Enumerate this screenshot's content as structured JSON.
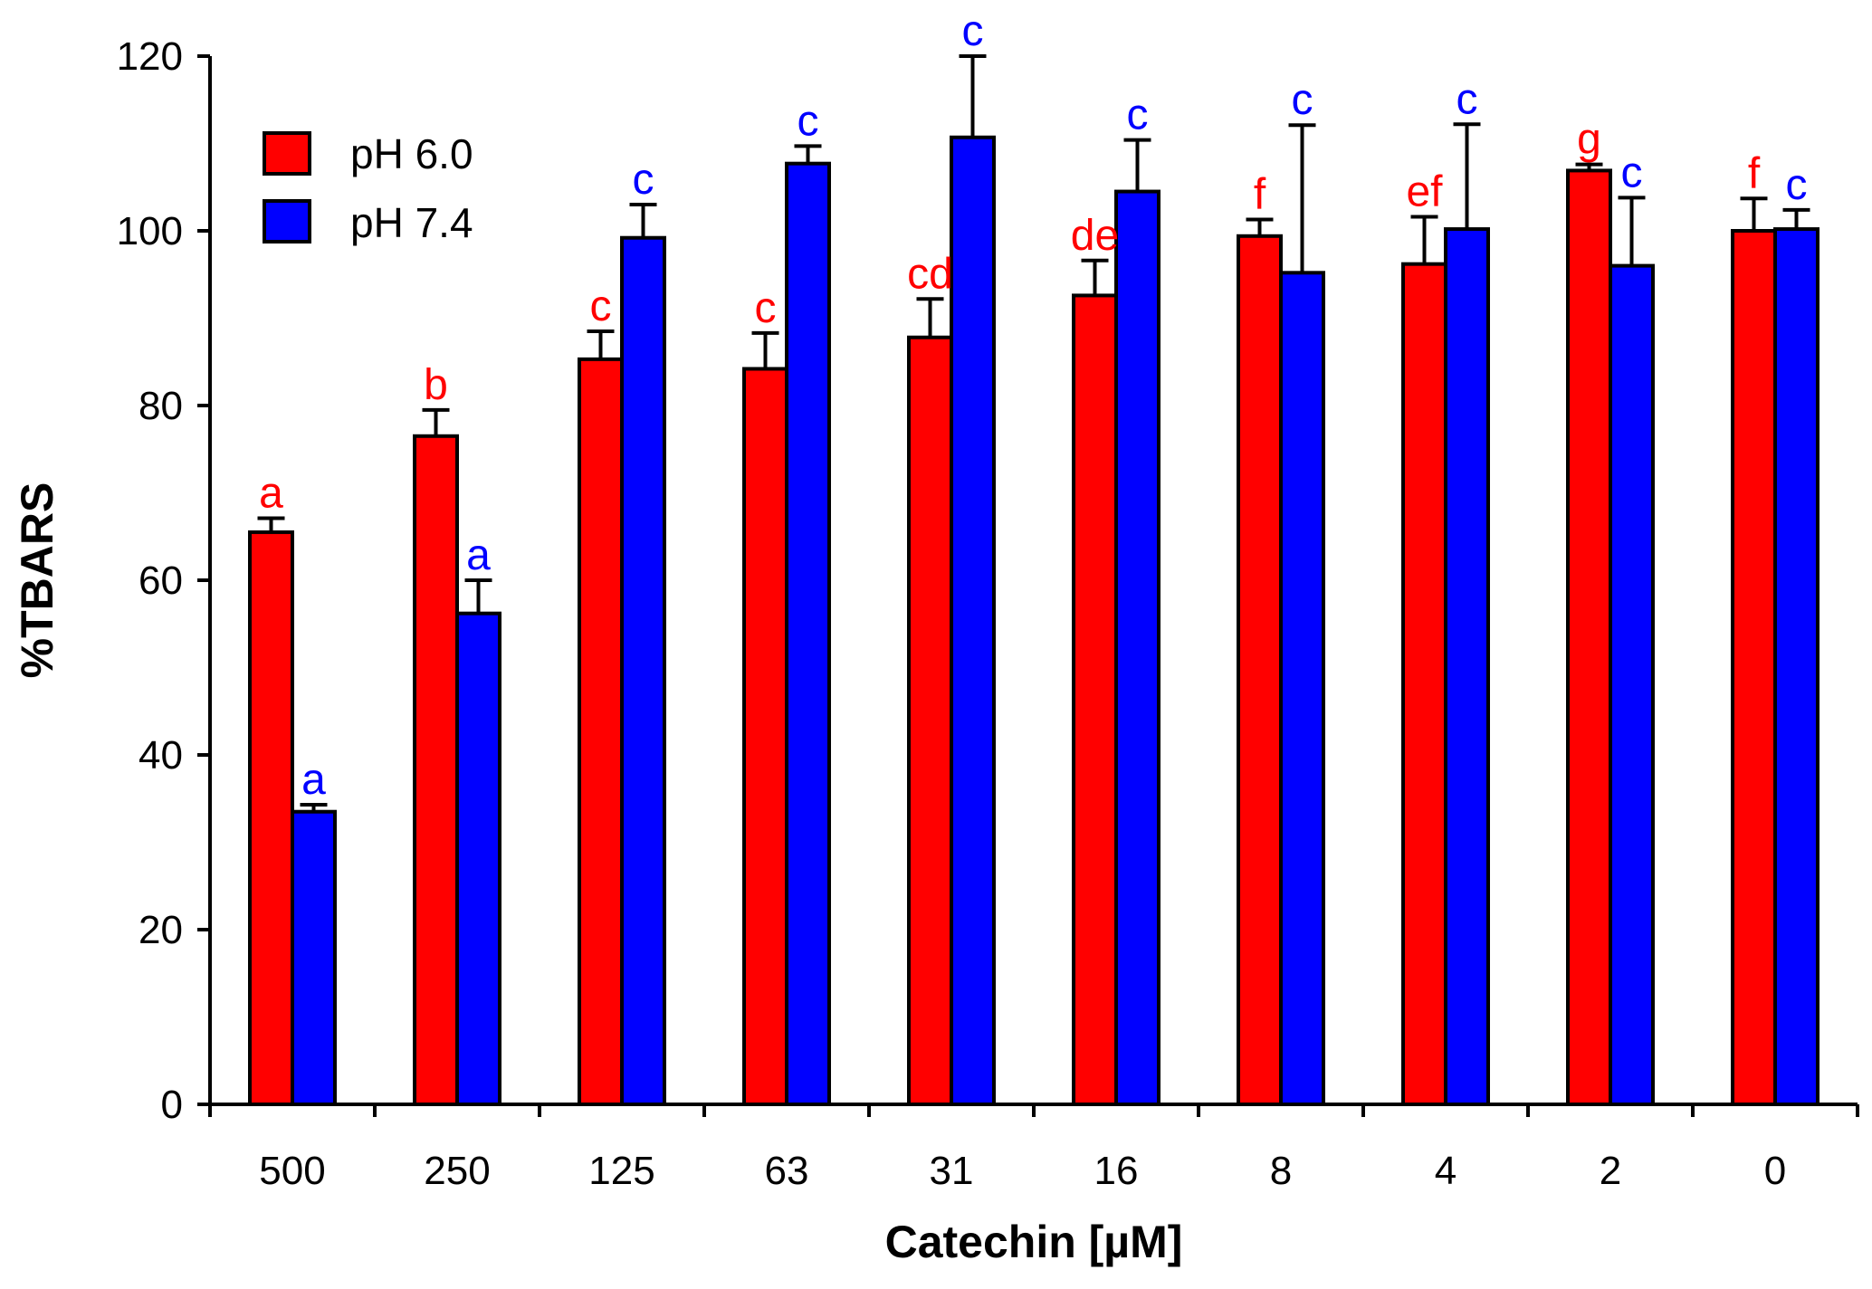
{
  "chart_data": {
    "type": "bar",
    "xlabel": "Catechin [µM]",
    "ylabel": "%TBARS",
    "ylim": [
      0,
      120
    ],
    "yticks": [
      "0",
      "20",
      "40",
      "60",
      "80",
      "100",
      "120"
    ],
    "categories": [
      "500",
      "250",
      "125",
      "63",
      "31",
      "16",
      "8",
      "4",
      "2",
      "0"
    ],
    "grid": false,
    "legend_position": "top-left",
    "series": [
      {
        "name": "pH 6.0",
        "color": "#ff0000",
        "values": [
          65.5,
          76.5,
          85.3,
          84.2,
          87.8,
          92.6,
          99.4,
          96.2,
          106.9,
          100.0
        ],
        "errors": [
          1.6,
          3.0,
          3.2,
          4.1,
          4.4,
          4.0,
          1.9,
          5.4,
          0.7,
          3.7
        ],
        "labels": [
          "a",
          "b",
          "c",
          "c",
          "cd",
          "de",
          "f",
          "ef",
          "g",
          "f"
        ]
      },
      {
        "name": "pH 7.4",
        "color": "#0000ff",
        "values": [
          33.5,
          56.2,
          99.2,
          107.7,
          110.7,
          104.5,
          95.2,
          100.2,
          96.0,
          100.2
        ],
        "errors": [
          0.8,
          3.8,
          3.8,
          2.0,
          9.3,
          5.9,
          16.9,
          12.0,
          7.8,
          2.2
        ],
        "labels": [
          "a",
          "a",
          "c",
          "c",
          "c",
          "c",
          "c",
          "c",
          "c",
          "c"
        ]
      }
    ]
  }
}
